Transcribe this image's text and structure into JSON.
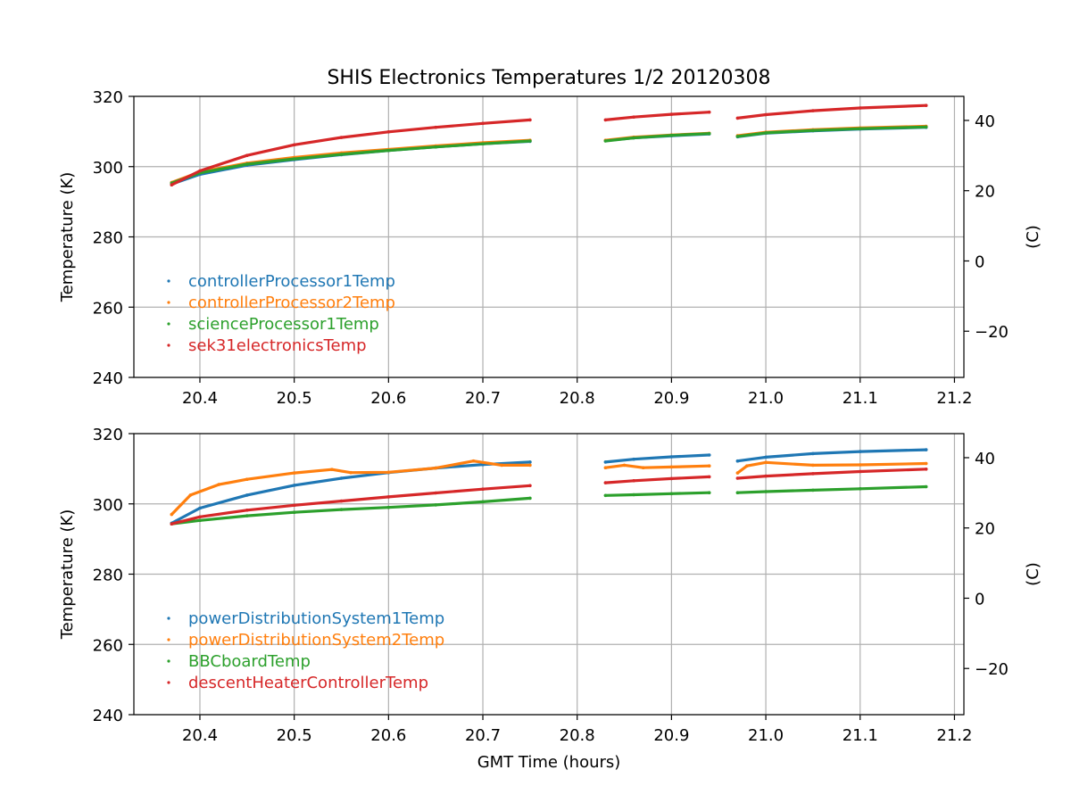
{
  "chart_data": {
    "title": "SHIS Electronics Temperatures 1/2 20120308",
    "xlabel": "GMT Time (hours)",
    "xlim": [
      20.33,
      21.21
    ],
    "xticks": [
      "20.4",
      "20.5",
      "20.6",
      "20.7",
      "20.8",
      "20.9",
      "21.0",
      "21.1",
      "21.2"
    ],
    "grid": true,
    "panels": [
      {
        "type": "scatter",
        "ylabel": "Temperature (K)",
        "y2label": "(C)",
        "ylim": [
          240,
          320
        ],
        "yticks": [
          "240",
          "260",
          "280",
          "300",
          "320"
        ],
        "y2ticks": [
          "−20",
          "0",
          "20",
          "40"
        ],
        "legend_position": "lower-left",
        "series": [
          {
            "name": "controllerProcessor1Temp",
            "color": "#1f77b4",
            "segments": [
              {
                "x": [
                  20.37,
                  20.4,
                  20.45,
                  20.5,
                  20.55,
                  20.6,
                  20.65,
                  20.7,
                  20.75
                ],
                "y": [
                  295.0,
                  297.8,
                  300.4,
                  302.0,
                  303.4,
                  304.6,
                  305.6,
                  306.5,
                  307.2
                ]
              },
              {
                "x": [
                  20.83,
                  20.86,
                  20.9,
                  20.94
                ],
                "y": [
                  307.4,
                  308.2,
                  308.8,
                  309.3
                ]
              },
              {
                "x": [
                  20.97,
                  21.0,
                  21.05,
                  21.1,
                  21.17
                ],
                "y": [
                  308.5,
                  309.5,
                  310.2,
                  310.7,
                  311.2
                ]
              }
            ]
          },
          {
            "name": "controllerProcessor2Temp",
            "color": "#ff7f0e",
            "segments": [
              {
                "x": [
                  20.37,
                  20.4,
                  20.45,
                  20.5,
                  20.55,
                  20.6,
                  20.65,
                  20.7,
                  20.75
                ],
                "y": [
                  295.5,
                  298.5,
                  301.0,
                  302.6,
                  303.9,
                  304.9,
                  305.9,
                  306.8,
                  307.5
                ]
              },
              {
                "x": [
                  20.83,
                  20.86,
                  20.9,
                  20.94
                ],
                "y": [
                  307.5,
                  308.4,
                  309.0,
                  309.5
                ]
              },
              {
                "x": [
                  20.97,
                  21.0,
                  21.05,
                  21.1,
                  21.17
                ],
                "y": [
                  308.8,
                  309.8,
                  310.5,
                  311.0,
                  311.5
                ]
              }
            ]
          },
          {
            "name": "scienceProcessor1Temp",
            "color": "#2ca02c",
            "segments": [
              {
                "x": [
                  20.37,
                  20.4,
                  20.45,
                  20.5,
                  20.55,
                  20.6,
                  20.65,
                  20.7,
                  20.75
                ],
                "y": [
                  295.3,
                  298.2,
                  300.7,
                  302.2,
                  303.5,
                  304.6,
                  305.6,
                  306.5,
                  307.3
                ]
              },
              {
                "x": [
                  20.83,
                  20.86,
                  20.9,
                  20.94
                ],
                "y": [
                  307.3,
                  308.2,
                  308.9,
                  309.4
                ]
              },
              {
                "x": [
                  20.97,
                  21.0,
                  21.05,
                  21.1,
                  21.17
                ],
                "y": [
                  308.6,
                  309.6,
                  310.3,
                  310.8,
                  311.3
                ]
              }
            ]
          },
          {
            "name": "sek31electronicsTemp",
            "color": "#d62728",
            "segments": [
              {
                "x": [
                  20.37,
                  20.4,
                  20.45,
                  20.5,
                  20.55,
                  20.6,
                  20.65,
                  20.7,
                  20.75
                ],
                "y": [
                  294.8,
                  298.8,
                  303.2,
                  306.2,
                  308.3,
                  309.9,
                  311.2,
                  312.3,
                  313.3
                ]
              },
              {
                "x": [
                  20.83,
                  20.86,
                  20.9,
                  20.94
                ],
                "y": [
                  313.3,
                  314.1,
                  314.9,
                  315.5
                ]
              },
              {
                "x": [
                  20.97,
                  21.0,
                  21.05,
                  21.1,
                  21.17
                ],
                "y": [
                  313.8,
                  314.8,
                  315.9,
                  316.7,
                  317.4
                ]
              }
            ]
          }
        ]
      },
      {
        "type": "scatter",
        "ylabel": "Temperature (K)",
        "y2label": "(C)",
        "ylim": [
          240,
          320
        ],
        "yticks": [
          "240",
          "260",
          "280",
          "300",
          "320"
        ],
        "y2ticks": [
          "−20",
          "0",
          "20",
          "40"
        ],
        "legend_position": "lower-left",
        "series": [
          {
            "name": "powerDistributionSystem1Temp",
            "color": "#1f77b4",
            "segments": [
              {
                "x": [
                  20.37,
                  20.4,
                  20.45,
                  20.5,
                  20.55,
                  20.6,
                  20.65,
                  20.7,
                  20.75
                ],
                "y": [
                  294.5,
                  298.8,
                  302.5,
                  305.3,
                  307.3,
                  308.9,
                  310.2,
                  311.2,
                  311.9
                ]
              },
              {
                "x": [
                  20.83,
                  20.86,
                  20.9,
                  20.94
                ],
                "y": [
                  311.9,
                  312.7,
                  313.4,
                  313.9
                ]
              },
              {
                "x": [
                  20.97,
                  21.0,
                  21.05,
                  21.1,
                  21.17
                ],
                "y": [
                  312.2,
                  313.3,
                  314.3,
                  314.9,
                  315.4
                ]
              }
            ]
          },
          {
            "name": "powerDistributionSystem2Temp",
            "color": "#ff7f0e",
            "segments": [
              {
                "x": [
                  20.37,
                  20.39,
                  20.42,
                  20.45,
                  20.5,
                  20.54,
                  20.56,
                  20.6,
                  20.65,
                  20.69,
                  20.72,
                  20.75
                ],
                "y": [
                  297.0,
                  302.5,
                  305.5,
                  307.0,
                  308.8,
                  309.8,
                  308.9,
                  309.0,
                  310.2,
                  312.2,
                  311.0,
                  311.0
                ]
              },
              {
                "x": [
                  20.83,
                  20.85,
                  20.87,
                  20.9,
                  20.94
                ],
                "y": [
                  310.3,
                  311.0,
                  310.3,
                  310.5,
                  310.8
                ]
              },
              {
                "x": [
                  20.97,
                  20.98,
                  21.0,
                  21.05,
                  21.1,
                  21.17
                ],
                "y": [
                  308.8,
                  310.8,
                  311.8,
                  311.0,
                  311.1,
                  311.5
                ]
              }
            ]
          },
          {
            "name": "BBCboardTemp",
            "color": "#2ca02c",
            "segments": [
              {
                "x": [
                  20.37,
                  20.4,
                  20.45,
                  20.5,
                  20.55,
                  20.6,
                  20.65,
                  20.7,
                  20.75
                ],
                "y": [
                  294.3,
                  295.3,
                  296.6,
                  297.6,
                  298.4,
                  299.0,
                  299.7,
                  300.6,
                  301.6
                ]
              },
              {
                "x": [
                  20.83,
                  20.86,
                  20.9,
                  20.94
                ],
                "y": [
                  302.4,
                  302.6,
                  302.9,
                  303.2
                ]
              },
              {
                "x": [
                  20.97,
                  21.0,
                  21.05,
                  21.1,
                  21.17
                ],
                "y": [
                  303.2,
                  303.5,
                  303.9,
                  304.3,
                  304.9
                ]
              }
            ]
          },
          {
            "name": "descentHeaterControllerTemp",
            "color": "#d62728",
            "segments": [
              {
                "x": [
                  20.37,
                  20.4,
                  20.45,
                  20.5,
                  20.55,
                  20.6,
                  20.65,
                  20.7,
                  20.75
                ],
                "y": [
                  294.3,
                  296.3,
                  298.2,
                  299.6,
                  300.8,
                  302.0,
                  303.1,
                  304.2,
                  305.2
                ]
              },
              {
                "x": [
                  20.83,
                  20.86,
                  20.9,
                  20.94
                ],
                "y": [
                  306.0,
                  306.6,
                  307.2,
                  307.7
                ]
              },
              {
                "x": [
                  20.97,
                  21.0,
                  21.05,
                  21.1,
                  21.17
                ],
                "y": [
                  307.3,
                  307.9,
                  308.6,
                  309.2,
                  309.9
                ]
              }
            ]
          }
        ]
      }
    ]
  }
}
